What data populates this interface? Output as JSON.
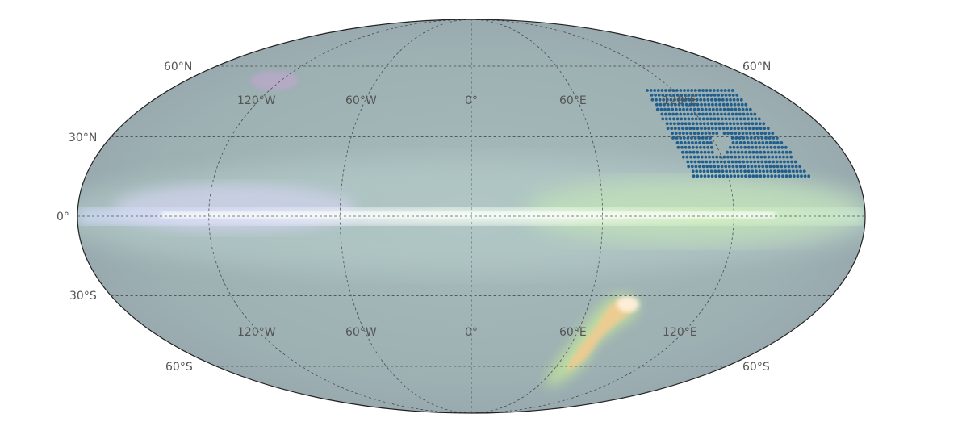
{
  "map": {
    "projection": "mollweide",
    "background": "galactic sky map (multi-band composite)",
    "colors": {
      "sky_base": "#9fb2b3",
      "sky_cool": "#a9c3c6",
      "plane_core": "#eef8f4",
      "plane_left": "#d6dcf6",
      "plane_right": "#d6f2c8",
      "warm_cloud": "#f4c98f",
      "magenta_wisps": "#c7a6d4",
      "graticule": "#333333",
      "outline": "#222222",
      "pointings": "#1f5e8e"
    },
    "graticule": {
      "latitude_lines_deg": [
        -60,
        -30,
        0,
        30,
        60
      ],
      "longitude_lines_deg": [
        -180,
        -120,
        -60,
        0,
        60,
        120,
        180
      ]
    },
    "labels": {
      "lat_left": [
        "60°N",
        "30°N",
        "0°",
        "30°S",
        "60°S"
      ],
      "lat_right": [
        "60°N",
        "60°S"
      ],
      "lon_upper": [
        "120°W",
        "60°W",
        "0°",
        "60°E",
        "120°E"
      ],
      "lon_lower": [
        "120°W",
        "60°W",
        "0°",
        "60°E",
        "120°E"
      ]
    },
    "survey_footprint": {
      "marker": "dot",
      "rows": 19,
      "description": "tiled pointing grid in the northern sky east of 60°E with an unobserved patch inside"
    }
  }
}
